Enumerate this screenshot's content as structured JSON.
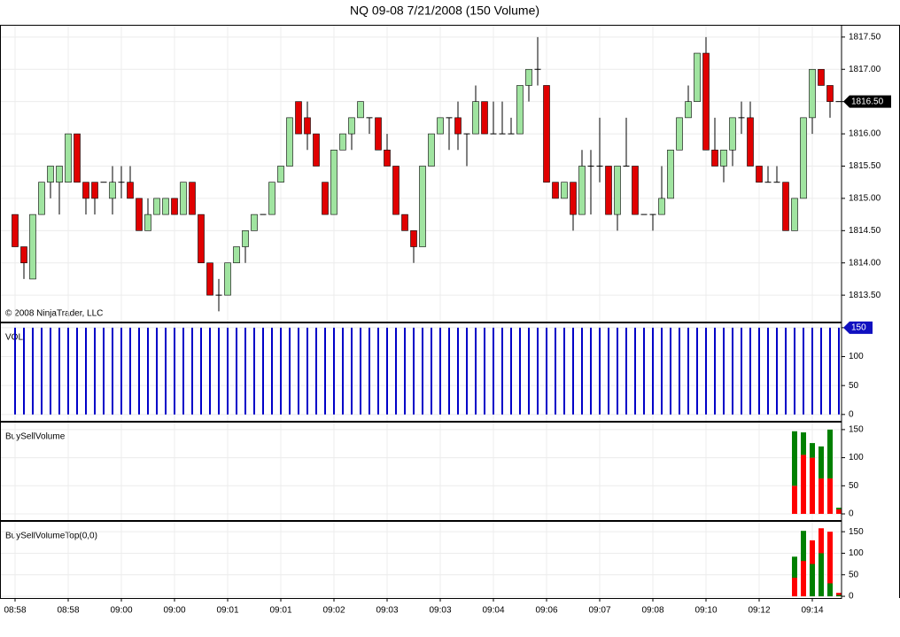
{
  "chart_data": [
    {
      "type": "candlestick",
      "title": "NQ 09-08  7/21/2008 (150 Volume)",
      "copyright": "© 2008 NinjaTrader, LLC",
      "up_color": "#a0e4a0",
      "down_color": "#e00000",
      "grid": true,
      "ylim": [
        1813.09,
        1817.69
      ],
      "yticks": [
        {
          "value": 1813.5,
          "label": "1813.50"
        },
        {
          "value": 1814.0,
          "label": "1814.00"
        },
        {
          "value": 1814.5,
          "label": "1814.50"
        },
        {
          "value": 1815.0,
          "label": "1815.00"
        },
        {
          "value": 1815.5,
          "label": "1815.50"
        },
        {
          "value": 1816.0,
          "label": "1816.00"
        },
        {
          "value": 1816.5,
          "label": "1816.50"
        },
        {
          "value": 1817.0,
          "label": "1817.00"
        },
        {
          "value": 1817.5,
          "label": "1817.50"
        }
      ],
      "last_price": {
        "value": 1816.5,
        "label": "1816.50"
      },
      "open": [
        1814.75,
        1814.25,
        1813.75,
        1814.75,
        1815.25,
        1815.25,
        1815.25,
        1816.0,
        1815.25,
        1815.25,
        1815.25,
        1815.0,
        1815.25,
        1815.25,
        1815.0,
        1814.5,
        1814.75,
        1814.75,
        1815.0,
        1814.75,
        1815.25,
        1814.75,
        1814.0,
        1813.5,
        1813.5,
        1814.0,
        1814.25,
        1814.5,
        1814.75,
        1814.75,
        1815.25,
        1815.5,
        1816.5,
        1816.25,
        1816.0,
        1815.25,
        1814.75,
        1815.75,
        1816.0,
        1816.25,
        1816.25,
        1816.25,
        1815.75,
        1815.5,
        1814.75,
        1814.5,
        1814.25,
        1815.5,
        1816.0,
        1816.25,
        1816.25,
        1816.0,
        1816.0,
        1816.5,
        1816.0,
        1816.0,
        1816.0,
        1816.0,
        1816.75,
        1817.0,
        1816.75,
        1815.25,
        1815.0,
        1815.25,
        1814.75,
        1815.5,
        1815.5,
        1815.5,
        1814.75,
        1815.5,
        1815.5,
        1814.75,
        1814.75,
        1814.75,
        1815.0,
        1815.75,
        1816.25,
        1816.5,
        1817.25,
        1815.75,
        1815.5,
        1815.75,
        1816.25,
        1816.25,
        1815.5,
        1815.25,
        1815.25,
        1815.25,
        1814.5,
        1815.0,
        1816.25,
        1817.0,
        1816.75,
        1816.5
      ],
      "high": [
        1814.75,
        1814.25,
        1814.75,
        1815.25,
        1815.5,
        1815.5,
        1816.0,
        1816.0,
        1815.25,
        1815.25,
        1815.25,
        1815.5,
        1815.5,
        1815.5,
        1815.0,
        1815.0,
        1815.0,
        1815.0,
        1815.0,
        1815.25,
        1815.25,
        1814.75,
        1814.0,
        1813.75,
        1814.0,
        1814.25,
        1814.5,
        1814.75,
        1814.75,
        1815.25,
        1815.5,
        1816.25,
        1816.5,
        1816.5,
        1816.0,
        1815.25,
        1815.75,
        1816.0,
        1816.25,
        1816.5,
        1816.25,
        1816.25,
        1816.0,
        1815.5,
        1814.75,
        1814.5,
        1815.5,
        1816.0,
        1816.25,
        1816.25,
        1816.5,
        1816.0,
        1816.75,
        1816.5,
        1816.5,
        1816.5,
        1816.25,
        1816.75,
        1817.0,
        1817.5,
        1816.75,
        1815.25,
        1815.25,
        1815.25,
        1815.75,
        1815.75,
        1816.25,
        1815.5,
        1815.5,
        1816.25,
        1815.5,
        1814.75,
        1814.75,
        1815.5,
        1815.75,
        1816.25,
        1816.75,
        1817.25,
        1817.5,
        1816.25,
        1815.75,
        1816.25,
        1816.5,
        1816.5,
        1815.5,
        1815.5,
        1815.5,
        1815.25,
        1815.0,
        1816.25,
        1817.0,
        1817.0,
        1816.75,
        1816.5
      ],
      "low": [
        1814.25,
        1813.75,
        1813.75,
        1814.75,
        1815.0,
        1814.75,
        1815.25,
        1815.25,
        1814.75,
        1814.75,
        1815.25,
        1814.75,
        1815.0,
        1815.0,
        1814.5,
        1814.5,
        1814.75,
        1814.75,
        1814.75,
        1814.75,
        1814.75,
        1814.0,
        1813.5,
        1813.25,
        1813.5,
        1814.0,
        1814.0,
        1814.5,
        1814.75,
        1814.75,
        1815.25,
        1815.5,
        1816.0,
        1815.75,
        1815.5,
        1814.75,
        1814.75,
        1815.75,
        1815.75,
        1816.25,
        1816.0,
        1815.75,
        1815.5,
        1814.75,
        1814.5,
        1814.0,
        1814.25,
        1815.5,
        1816.0,
        1815.75,
        1815.75,
        1815.5,
        1816.0,
        1816.0,
        1816.0,
        1816.0,
        1816.0,
        1816.0,
        1816.5,
        1816.75,
        1815.25,
        1815.0,
        1815.0,
        1814.5,
        1814.75,
        1814.75,
        1815.25,
        1814.75,
        1814.5,
        1815.5,
        1814.75,
        1814.75,
        1814.5,
        1814.75,
        1815.0,
        1815.75,
        1816.25,
        1816.5,
        1815.75,
        1815.5,
        1815.25,
        1815.5,
        1816.0,
        1815.5,
        1815.25,
        1815.25,
        1815.25,
        1814.5,
        1814.5,
        1815.0,
        1816.0,
        1816.75,
        1816.25,
        1816.5
      ],
      "close": [
        1814.25,
        1814.0,
        1814.75,
        1815.25,
        1815.5,
        1815.5,
        1816.0,
        1815.25,
        1815.0,
        1815.0,
        1815.25,
        1815.25,
        1815.25,
        1815.0,
        1814.5,
        1814.75,
        1815.0,
        1815.0,
        1814.75,
        1815.25,
        1814.75,
        1814.0,
        1813.5,
        1813.5,
        1814.0,
        1814.25,
        1814.5,
        1814.75,
        1814.75,
        1815.25,
        1815.5,
        1816.25,
        1816.0,
        1816.0,
        1815.5,
        1814.75,
        1815.75,
        1816.0,
        1816.25,
        1816.5,
        1816.25,
        1815.75,
        1815.5,
        1814.75,
        1814.5,
        1814.25,
        1815.5,
        1816.0,
        1816.25,
        1816.25,
        1816.0,
        1816.0,
        1816.5,
        1816.0,
        1816.0,
        1816.0,
        1816.0,
        1816.75,
        1817.0,
        1817.0,
        1815.25,
        1815.0,
        1815.25,
        1814.75,
        1815.5,
        1815.5,
        1815.5,
        1814.75,
        1815.5,
        1815.5,
        1814.75,
        1814.75,
        1814.75,
        1815.0,
        1815.75,
        1816.25,
        1816.5,
        1817.25,
        1815.75,
        1815.5,
        1815.75,
        1816.25,
        1816.25,
        1815.5,
        1815.25,
        1815.25,
        1815.25,
        1814.5,
        1815.0,
        1816.25,
        1817.0,
        1816.75,
        1816.5,
        1816.5
      ]
    },
    {
      "type": "bar",
      "label": "VOL",
      "color": "#0000c8",
      "grid": true,
      "ylim": [
        -11,
        159
      ],
      "yticks": [
        0,
        50,
        100,
        150
      ],
      "values": [
        150,
        150,
        150,
        150,
        150,
        150,
        150,
        150,
        150,
        150,
        150,
        150,
        150,
        150,
        150,
        150,
        150,
        150,
        150,
        150,
        150,
        150,
        150,
        150,
        150,
        150,
        150,
        150,
        150,
        150,
        150,
        150,
        150,
        150,
        150,
        150,
        150,
        150,
        150,
        150,
        150,
        150,
        150,
        150,
        150,
        150,
        150,
        150,
        150,
        150,
        150,
        150,
        150,
        150,
        150,
        150,
        150,
        150,
        150,
        150,
        150,
        150,
        150,
        150,
        150,
        150,
        150,
        150,
        150,
        150,
        150,
        150,
        150,
        150,
        150,
        150,
        150,
        150,
        150,
        150,
        150,
        150,
        150,
        150,
        150,
        150,
        150,
        150,
        150,
        150,
        150,
        150,
        150,
        150
      ]
    },
    {
      "type": "stacked-bar",
      "label": "BuySellVolume",
      "grid": true,
      "ylim": [
        -11,
        164
      ],
      "yticks": [
        0,
        50,
        100,
        150
      ],
      "series": [
        {
          "color": "#ff0000",
          "values": [
            null,
            null,
            null,
            null,
            null,
            null,
            null,
            null,
            null,
            null,
            null,
            null,
            null,
            null,
            null,
            null,
            null,
            null,
            null,
            null,
            null,
            null,
            null,
            null,
            null,
            null,
            null,
            null,
            null,
            null,
            null,
            null,
            null,
            null,
            null,
            null,
            null,
            null,
            null,
            null,
            null,
            null,
            null,
            null,
            null,
            null,
            null,
            null,
            null,
            null,
            null,
            null,
            null,
            null,
            null,
            null,
            null,
            null,
            null,
            null,
            null,
            null,
            null,
            null,
            null,
            null,
            null,
            null,
            null,
            null,
            null,
            null,
            null,
            null,
            null,
            null,
            null,
            null,
            null,
            null,
            null,
            null,
            null,
            null,
            null,
            null,
            null,
            null,
            50,
            105,
            100,
            63,
            63,
            8
          ]
        },
        {
          "color": "#008000",
          "values": [
            null,
            null,
            null,
            null,
            null,
            null,
            null,
            null,
            null,
            null,
            null,
            null,
            null,
            null,
            null,
            null,
            null,
            null,
            null,
            null,
            null,
            null,
            null,
            null,
            null,
            null,
            null,
            null,
            null,
            null,
            null,
            null,
            null,
            null,
            null,
            null,
            null,
            null,
            null,
            null,
            null,
            null,
            null,
            null,
            null,
            null,
            null,
            null,
            null,
            null,
            null,
            null,
            null,
            null,
            null,
            null,
            null,
            null,
            null,
            null,
            null,
            null,
            null,
            null,
            null,
            null,
            null,
            null,
            null,
            null,
            null,
            null,
            null,
            null,
            null,
            null,
            null,
            null,
            null,
            null,
            null,
            null,
            null,
            null,
            null,
            null,
            null,
            null,
            97,
            40,
            26,
            57,
            87,
            3
          ]
        }
      ]
    },
    {
      "type": "overlay-bar",
      "label": "BuySellVolumeTop(0,0)",
      "grid": true,
      "ylim": [
        -4,
        175
      ],
      "yticks": [
        0,
        50,
        100,
        150
      ],
      "categories": [
        "08:58",
        null,
        null,
        null,
        null,
        null,
        "08:58",
        null,
        null,
        null,
        null,
        null,
        "09:00",
        null,
        null,
        null,
        null,
        null,
        "09:00",
        null,
        null,
        null,
        null,
        null,
        "09:01",
        null,
        null,
        null,
        null,
        null,
        "09:01",
        null,
        null,
        null,
        null,
        null,
        "09:02",
        null,
        null,
        null,
        null,
        null,
        "09:03",
        null,
        null,
        null,
        null,
        null,
        "09:03",
        null,
        null,
        null,
        null,
        null,
        "09:04",
        null,
        null,
        null,
        null,
        null,
        "09:06",
        null,
        null,
        null,
        null,
        null,
        "09:07",
        null,
        null,
        null,
        null,
        null,
        "09:08",
        null,
        null,
        null,
        null,
        null,
        "09:10",
        null,
        null,
        null,
        null,
        null,
        "09:12",
        null,
        null,
        null,
        null,
        null,
        "09:14",
        null,
        null,
        null
      ],
      "series": [
        {
          "color": "#008000",
          "values": [
            null,
            null,
            null,
            null,
            null,
            null,
            null,
            null,
            null,
            null,
            null,
            null,
            null,
            null,
            null,
            null,
            null,
            null,
            null,
            null,
            null,
            null,
            null,
            null,
            null,
            null,
            null,
            null,
            null,
            null,
            null,
            null,
            null,
            null,
            null,
            null,
            null,
            null,
            null,
            null,
            null,
            null,
            null,
            null,
            null,
            null,
            null,
            null,
            null,
            null,
            null,
            null,
            null,
            null,
            null,
            null,
            null,
            null,
            null,
            null,
            null,
            null,
            null,
            null,
            null,
            null,
            null,
            null,
            null,
            null,
            null,
            null,
            null,
            null,
            null,
            null,
            null,
            null,
            null,
            null,
            null,
            null,
            null,
            null,
            null,
            null,
            null,
            null,
            92,
            152,
            75,
            100,
            30,
            3
          ]
        },
        {
          "color": "#ff0000",
          "values": [
            null,
            null,
            null,
            null,
            null,
            null,
            null,
            null,
            null,
            null,
            null,
            null,
            null,
            null,
            null,
            null,
            null,
            null,
            null,
            null,
            null,
            null,
            null,
            null,
            null,
            null,
            null,
            null,
            null,
            null,
            null,
            null,
            null,
            null,
            null,
            null,
            null,
            null,
            null,
            null,
            null,
            null,
            null,
            null,
            null,
            null,
            null,
            null,
            null,
            null,
            null,
            null,
            null,
            null,
            null,
            null,
            null,
            null,
            null,
            null,
            null,
            null,
            null,
            null,
            null,
            null,
            null,
            null,
            null,
            null,
            null,
            null,
            null,
            null,
            null,
            null,
            null,
            null,
            null,
            null,
            null,
            null,
            null,
            null,
            null,
            null,
            null,
            null,
            43,
            82,
            130,
            158,
            150,
            8
          ]
        }
      ]
    }
  ]
}
